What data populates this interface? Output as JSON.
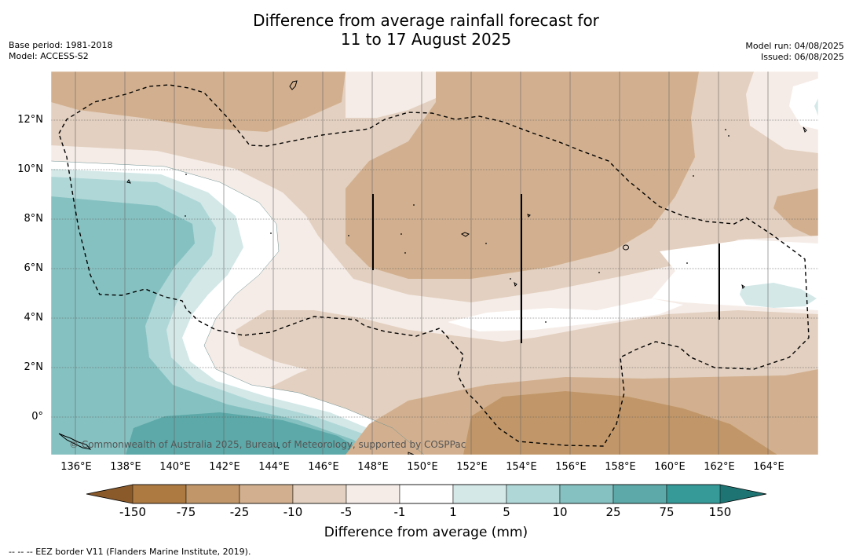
{
  "title": {
    "line1": "Difference from average rainfall forecast for",
    "line2": "11 to 17 August 2025"
  },
  "meta_left": {
    "base_period": "Base period: 1981-2018",
    "model": "Model: ACCESS-S2"
  },
  "meta_right": {
    "model_run": "Model run: 04/08/2025",
    "issued": "Issued: 06/08/2025"
  },
  "map": {
    "lat_labels": [
      "12°N",
      "10°N",
      "8°N",
      "6°N",
      "4°N",
      "2°N",
      "0°"
    ],
    "lon_labels": [
      "136°E",
      "138°E",
      "140°E",
      "142°E",
      "144°E",
      "146°E",
      "148°E",
      "150°E",
      "152°E",
      "154°E",
      "156°E",
      "158°E",
      "160°E",
      "162°E",
      "164°E"
    ],
    "copyright": "© Commonwealth of Australia 2025, Bureau of Meteorology, supported by COSPPac",
    "border_color": "#000000"
  },
  "colorbar": {
    "tick_labels": [
      "-150",
      "-75",
      "-25",
      "-10",
      "-5",
      "-1",
      "1",
      "5",
      "10",
      "25",
      "75",
      "150"
    ],
    "colors": [
      "#ad7a42",
      "#c19769",
      "#d2b08f",
      "#e3d0c0",
      "#f5ece7",
      "#ffffff",
      "#d4e8e8",
      "#b0d7d7",
      "#86c1c1",
      "#5da9a9",
      "#369a98"
    ],
    "extend_low": "#8a5a2b",
    "extend_high": "#1e7473",
    "label": "Difference from average (mm)"
  },
  "footnote": "--  --  -- EEZ border V11 (Flanders Marine Institute, 2019)."
}
